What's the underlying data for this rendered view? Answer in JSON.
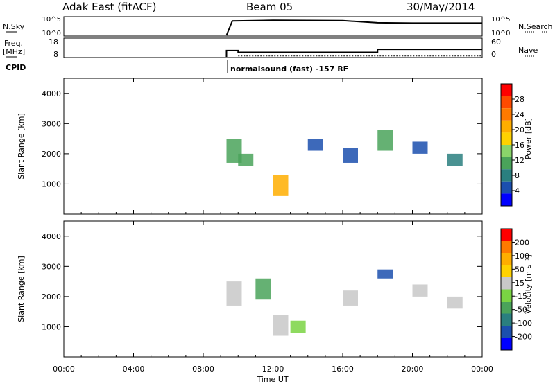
{
  "header": {
    "station": "Adak East (fitACF)",
    "beam": "Beam 05",
    "date": "30/May/2014"
  },
  "top_panels": {
    "nsky_label": "N.Sky",
    "nsearch_label": "N.Search",
    "freq_label_1": "Freq.",
    "freq_label_2": "[MHz]",
    "nave_label": "Nave",
    "cpid_label": "CPID",
    "nsky_ticks": [
      "10^5",
      "10^0"
    ],
    "nsearch_ticks": [
      "10^5",
      "10^0"
    ],
    "freq_ticks": [
      "18",
      "8"
    ],
    "nave_ticks": [
      "60",
      "0"
    ],
    "cpid_text": "normalsound (fast) -157 RF"
  },
  "power_panel": {
    "ylabel": "Slant Range [km]",
    "yticks": [
      "4000",
      "3000",
      "2000",
      "1000"
    ],
    "colorbar_label": "Power [dB]",
    "colorbar_ticks": [
      "28",
      "24",
      "20",
      "16",
      "12",
      "8",
      "4"
    ],
    "colors": [
      "#0000ff",
      "#1b4fae",
      "#2a7f7f",
      "#4aa35a",
      "#8ad46a",
      "#ffd200",
      "#ffae00",
      "#ff7a00",
      "#ff4a00",
      "#ff0000"
    ]
  },
  "velocity_panel": {
    "ylabel": "Slant Range [km]",
    "yticks": [
      "4000",
      "3000",
      "2000",
      "1000"
    ],
    "colorbar_label": "Velocity [m s⁻¹]",
    "colorbar_ticks": [
      "200",
      "100",
      "50",
      "15",
      "-15",
      "-50",
      "-100",
      "-200"
    ],
    "colors": [
      "#0000ff",
      "#1b4fae",
      "#2a7f7f",
      "#4aa35a",
      "#7ad443",
      "#c8c8c8",
      "#ffd200",
      "#ffae00",
      "#ff7a00",
      "#ff0000"
    ]
  },
  "xaxis": {
    "label": "Time UT",
    "ticks": [
      "00:00",
      "04:00",
      "08:00",
      "12:00",
      "16:00",
      "20:00",
      "00:00"
    ]
  },
  "chart_data": [
    {
      "type": "line",
      "name": "N.Sky",
      "x": [
        "09:20",
        "09:40",
        "12:00",
        "16:00",
        "18:00",
        "20:00",
        "24:00"
      ],
      "y": [
        1,
        10000,
        15000,
        12000,
        3000,
        2500,
        2500
      ]
    },
    {
      "type": "line",
      "name": "Freq.",
      "x": [
        "09:20",
        "09:20",
        "10:00",
        "10:00",
        "18:00",
        "18:00",
        "24:00"
      ],
      "y": [
        8,
        11.5,
        11.5,
        10.5,
        10.5,
        12.2,
        12.2
      ]
    },
    {
      "type": "heatmap",
      "name": "Power",
      "x_range": [
        "00:00",
        "24:00"
      ],
      "y_range": [
        0,
        4500
      ],
      "color_range": [
        0,
        32
      ],
      "cells": [
        {
          "t": "09:20",
          "r": [
            1700,
            2500
          ],
          "v": 12
        },
        {
          "t": "10:00",
          "r": [
            1600,
            2000
          ],
          "v": 10
        },
        {
          "t": "12:00",
          "r": [
            600,
            1300
          ],
          "v": 20
        },
        {
          "t": "14:00",
          "r": [
            2100,
            2500
          ],
          "v": 6
        },
        {
          "t": "16:00",
          "r": [
            1700,
            2200
          ],
          "v": 6
        },
        {
          "t": "18:00",
          "r": [
            2100,
            2800
          ],
          "v": 12
        },
        {
          "t": "20:00",
          "r": [
            2000,
            2400
          ],
          "v": 6
        },
        {
          "t": "22:00",
          "r": [
            1600,
            2000
          ],
          "v": 8
        }
      ]
    },
    {
      "type": "heatmap",
      "name": "Velocity",
      "x_range": [
        "00:00",
        "24:00"
      ],
      "y_range": [
        0,
        4500
      ],
      "color_range": [
        -250,
        250
      ],
      "cells": [
        {
          "t": "09:20",
          "r": [
            1700,
            2500
          ],
          "v": 0
        },
        {
          "t": "11:00",
          "r": [
            1900,
            2600
          ],
          "v": -60
        },
        {
          "t": "12:00",
          "r": [
            700,
            1400
          ],
          "v": 20
        },
        {
          "t": "13:00",
          "r": [
            800,
            1200
          ],
          "v": -40
        },
        {
          "t": "16:00",
          "r": [
            1700,
            2200
          ],
          "v": 0
        },
        {
          "t": "18:00",
          "r": [
            2600,
            2900
          ],
          "v": -200
        },
        {
          "t": "20:00",
          "r": [
            2000,
            2400
          ],
          "v": 0
        },
        {
          "t": "22:00",
          "r": [
            1600,
            2000
          ],
          "v": 0
        }
      ]
    }
  ]
}
